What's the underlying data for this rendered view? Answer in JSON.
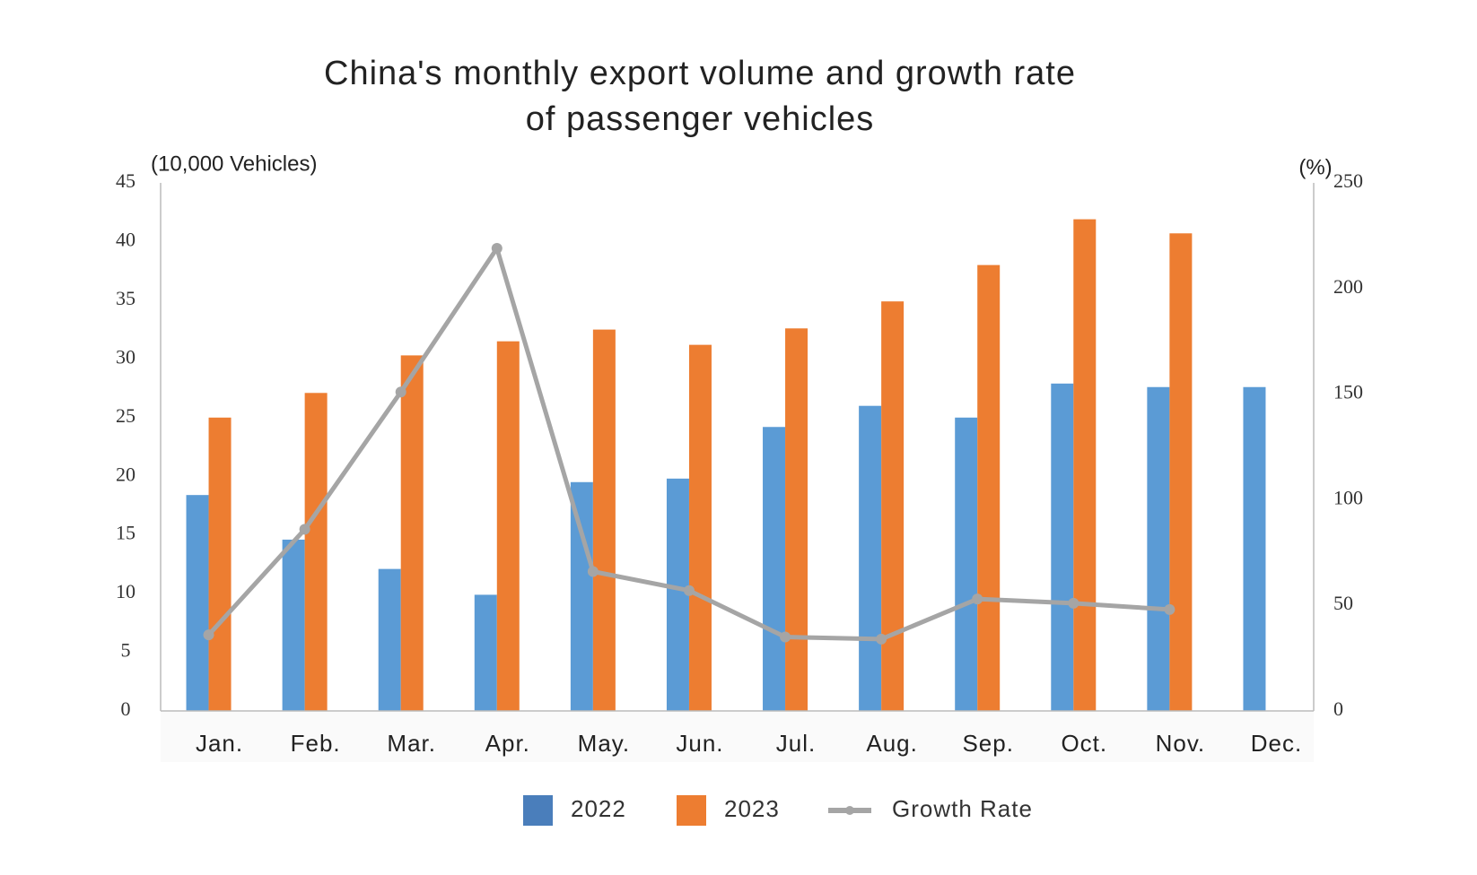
{
  "chart_data": {
    "type": "bar-line",
    "title": [
      "China's monthly export volume and growth rate",
      "of passenger vehicles"
    ],
    "y_axis_label": "(10,000 Vehicles)",
    "y2_axis_label": "(%)",
    "categories": [
      "Jan.",
      "Feb.",
      "Mar.",
      "Apr.",
      "May.",
      "Jun.",
      "Jul.",
      "Aug.",
      "Sep.",
      "Oct.",
      "Nov.",
      "Dec."
    ],
    "series": [
      {
        "name": "2022",
        "type": "bar",
        "color": "#5b9bd5",
        "legend_color": "#4a7ebb",
        "values": [
          18.4,
          14.6,
          12.1,
          9.9,
          19.5,
          19.8,
          24.2,
          26.0,
          25.0,
          27.9,
          27.6,
          27.6
        ]
      },
      {
        "name": "2023",
        "type": "bar",
        "color": "#ed7d31",
        "values": [
          25.0,
          27.1,
          30.3,
          31.5,
          32.5,
          31.2,
          32.6,
          34.9,
          38.0,
          41.9,
          40.7,
          null
        ]
      },
      {
        "name": "Growth Rate",
        "type": "line",
        "axis": "y2",
        "color": "#a5a5a5",
        "values": [
          36,
          86,
          151,
          219,
          66,
          57,
          35,
          34,
          53,
          51,
          48,
          null
        ]
      }
    ],
    "ylim": [
      0,
      45
    ],
    "yticks": [
      0,
      5,
      10,
      15,
      20,
      25,
      30,
      35,
      40,
      45
    ],
    "y2lim": [
      0,
      250
    ],
    "y2ticks": [
      0,
      50,
      100,
      150,
      200,
      250
    ],
    "grid": false,
    "legend": "bottom"
  }
}
